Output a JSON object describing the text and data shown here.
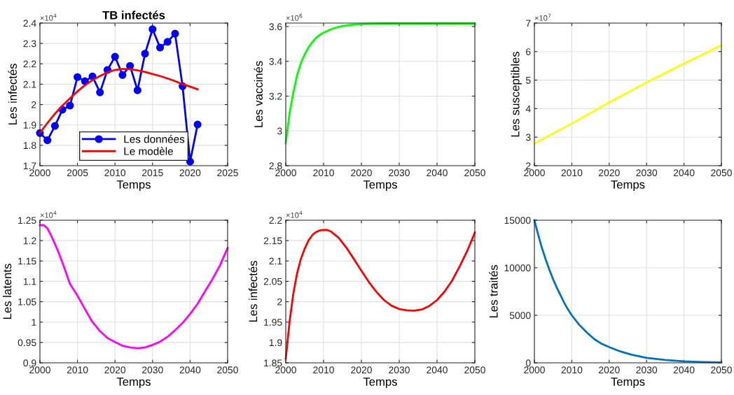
{
  "chart_data": [
    {
      "type": "line",
      "title": "TB infectés",
      "xlabel": "Temps",
      "ylabel": "Les infectés",
      "annotations": [
        "×10$^{4}$"
      ],
      "xlim": [
        2000,
        2025
      ],
      "xticks": [
        2000,
        2005,
        2010,
        2015,
        2020,
        2025
      ],
      "ylim": [
        1.7,
        2.4
      ],
      "yticks": [
        1.7,
        1.8,
        1.9,
        2,
        2.1,
        2.2,
        2.3,
        2.4
      ],
      "grid": true,
      "legend": "bottom",
      "series": [
        {
          "name": "Les données",
          "color": "#0000ff",
          "marker": "circle",
          "x": [
            2000,
            2001,
            2002,
            2003,
            2004,
            2005,
            2006,
            2007,
            2008,
            2009,
            2010,
            2011,
            2012,
            2013,
            2014,
            2015,
            2016,
            2017,
            2018,
            2019,
            2020,
            2021
          ],
          "values": [
            1.86,
            1.825,
            1.895,
            1.975,
            1.995,
            2.135,
            2.115,
            2.138,
            2.06,
            2.17,
            2.235,
            2.145,
            2.19,
            2.07,
            2.25,
            2.37,
            2.28,
            2.308,
            2.348,
            2.09,
            1.72,
            1.902
          ]
        },
        {
          "name": "Le modèle",
          "color": "#ff0000",
          "x": [
            2000,
            2001,
            2002,
            2003,
            2004,
            2005,
            2006,
            2007,
            2008,
            2009,
            2010,
            2011,
            2012,
            2013,
            2014,
            2015,
            2016,
            2017,
            2018,
            2019,
            2020,
            2021
          ],
          "values": [
            1.86,
            1.91,
            1.955,
            1.995,
            2.03,
            2.065,
            2.095,
            2.12,
            2.14,
            2.158,
            2.17,
            2.175,
            2.174,
            2.168,
            2.16,
            2.15,
            2.14,
            2.128,
            2.115,
            2.1,
            2.088,
            2.075
          ]
        }
      ]
    },
    {
      "type": "line",
      "xlabel": "Temps",
      "ylabel": "Les vaccinés",
      "annotations": [
        "×10$^{6}$"
      ],
      "xlim": [
        2000,
        2050
      ],
      "xticks": [
        2000,
        2010,
        2020,
        2030,
        2040,
        2050
      ],
      "ylim": [
        2.8,
        3.62
      ],
      "yticks": [
        2.8,
        3,
        3.2,
        3.4,
        3.6
      ],
      "grid": true,
      "series": [
        {
          "color": "#00ff00",
          "x": [
            2000,
            2001,
            2002,
            2003,
            2004,
            2005,
            2006,
            2007,
            2008,
            2009,
            2010,
            2012,
            2014,
            2016,
            2018,
            2020,
            2025,
            2030,
            2040,
            2050
          ],
          "values": [
            2.93,
            3.1,
            3.22,
            3.32,
            3.39,
            3.44,
            3.48,
            3.51,
            3.535,
            3.552,
            3.565,
            3.585,
            3.598,
            3.606,
            3.611,
            3.614,
            3.617,
            3.617,
            3.617,
            3.617
          ]
        }
      ]
    },
    {
      "type": "line",
      "xlabel": "Temps",
      "ylabel": "Les susceptibles",
      "annotations": [
        "×10$^{7}$"
      ],
      "xlim": [
        2000,
        2050
      ],
      "xticks": [
        2000,
        2010,
        2020,
        2030,
        2040,
        2050
      ],
      "ylim": [
        2,
        7
      ],
      "yticks": [
        2,
        3,
        4,
        5,
        6,
        7
      ],
      "grid": true,
      "series": [
        {
          "color": "#ffff00",
          "x": [
            2000,
            2010,
            2020,
            2030,
            2040,
            2050
          ],
          "values": [
            2.78,
            3.48,
            4.22,
            4.92,
            5.58,
            6.22
          ]
        }
      ]
    },
    {
      "type": "line",
      "xlabel": "Temps",
      "ylabel": "Les latents",
      "annotations": [
        "×10$^{4}$"
      ],
      "xlim": [
        2000,
        2050
      ],
      "xticks": [
        2000,
        2010,
        2020,
        2030,
        2040,
        2050
      ],
      "ylim": [
        0.9,
        1.25
      ],
      "yticks": [
        0.9,
        0.95,
        1,
        1.05,
        1.1,
        1.15,
        1.2,
        1.25
      ],
      "grid": true,
      "series": [
        {
          "color": "#ff00ff",
          "x": [
            2000,
            2001,
            2002,
            2003,
            2004,
            2005,
            2006,
            2007,
            2008,
            2010,
            2012,
            2014,
            2016,
            2018,
            2020,
            2022,
            2024,
            2026,
            2028,
            2030,
            2032,
            2034,
            2036,
            2038,
            2040,
            2042,
            2044,
            2046,
            2048,
            2050
          ],
          "values": [
            1.238,
            1.238,
            1.23,
            1.212,
            1.192,
            1.17,
            1.146,
            1.12,
            1.094,
            1.065,
            1.032,
            1.0,
            0.978,
            0.961,
            0.951,
            0.942,
            0.938,
            0.936,
            0.938,
            0.944,
            0.952,
            0.964,
            0.98,
            0.998,
            1.02,
            1.045,
            1.076,
            1.106,
            1.14,
            1.182
          ]
        }
      ]
    },
    {
      "type": "line",
      "xlabel": "Temps",
      "ylabel": "Les infectés",
      "annotations": [
        "×10$^{4}$"
      ],
      "xlim": [
        2000,
        2050
      ],
      "xticks": [
        2000,
        2010,
        2020,
        2030,
        2040,
        2050
      ],
      "ylim": [
        1.85,
        2.2
      ],
      "yticks": [
        1.85,
        1.9,
        1.95,
        2,
        2.05,
        2.1,
        2.15,
        2.2
      ],
      "grid": true,
      "series": [
        {
          "color": "#ff0000",
          "x": [
            2000,
            2001,
            2002,
            2003,
            2004,
            2005,
            2006,
            2007,
            2008,
            2009,
            2010,
            2011,
            2012,
            2014,
            2016,
            2018,
            2020,
            2022,
            2024,
            2026,
            2028,
            2030,
            2032,
            2034,
            2036,
            2038,
            2040,
            2042,
            2044,
            2046,
            2048,
            2050
          ],
          "values": [
            1.86,
            1.95,
            2.02,
            2.07,
            2.105,
            2.13,
            2.15,
            2.163,
            2.171,
            2.175,
            2.176,
            2.176,
            2.172,
            2.157,
            2.133,
            2.105,
            2.076,
            2.048,
            2.024,
            2.004,
            1.99,
            1.982,
            1.979,
            1.978,
            1.981,
            1.99,
            2.004,
            2.025,
            2.052,
            2.087,
            2.125,
            2.17
          ]
        }
      ]
    },
    {
      "type": "line",
      "xlabel": "Temps",
      "ylabel": "Les traités",
      "xlim": [
        2000,
        2050
      ],
      "xticks": [
        2000,
        2010,
        2020,
        2030,
        2040,
        2050
      ],
      "ylim": [
        0,
        15000
      ],
      "yticks": [
        0,
        5000,
        10000,
        15000
      ],
      "grid": true,
      "series": [
        {
          "color": "#0072bd",
          "x": [
            2000,
            2001,
            2002,
            2003,
            2004,
            2005,
            2006,
            2007,
            2008,
            2009,
            2010,
            2012,
            2014,
            2016,
            2018,
            2020,
            2023,
            2026,
            2030,
            2035,
            2040,
            2045,
            2050
          ],
          "values": [
            15000,
            13500,
            12100,
            10900,
            9800,
            8800,
            7900,
            7100,
            6300,
            5600,
            5000,
            4000,
            3200,
            2500,
            2000,
            1650,
            1200,
            850,
            530,
            300,
            160,
            80,
            40
          ]
        }
      ]
    }
  ]
}
